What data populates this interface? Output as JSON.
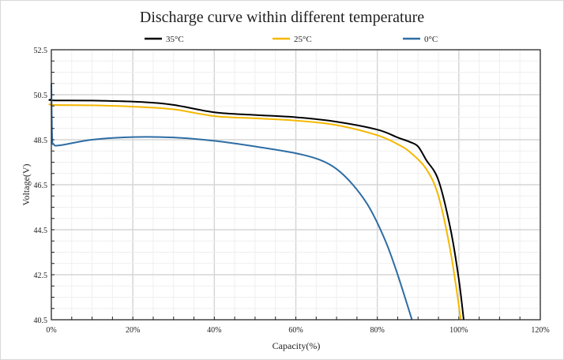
{
  "chart_data": {
    "type": "line",
    "title": "Discharge curve within different temperature",
    "xlabel": "Capacity(%)",
    "ylabel": "Voltage(V)",
    "xlim": [
      0,
      120
    ],
    "ylim": [
      40.5,
      52.5
    ],
    "x_ticks": [
      "0%",
      "20%",
      "40%",
      "60%",
      "80%",
      "100%",
      "120%"
    ],
    "y_ticks": [
      "52.5",
      "50.5",
      "48.5",
      "46.5",
      "44.5",
      "42.5",
      "40.5"
    ],
    "grid": true,
    "legend_position": "top",
    "series": [
      {
        "name": "35°C",
        "color": "#000000",
        "x": [
          0,
          0.3,
          10,
          22,
          30,
          40,
          50,
          60,
          70,
          80,
          85,
          88,
          90,
          92,
          95,
          98,
          100,
          101.2
        ],
        "y": [
          50.3,
          50.25,
          50.24,
          50.18,
          50.05,
          49.72,
          49.6,
          49.5,
          49.3,
          48.95,
          48.6,
          48.4,
          48.2,
          47.6,
          46.7,
          44.5,
          42.3,
          40.5
        ]
      },
      {
        "name": "25°C",
        "color": "#f5b800",
        "x": [
          0,
          0.3,
          10,
          20,
          30,
          40,
          50,
          60,
          70,
          80,
          85,
          88,
          92,
          95,
          98,
          100.5
        ],
        "y": [
          50.1,
          50.05,
          50.03,
          49.97,
          49.85,
          49.55,
          49.45,
          49.35,
          49.15,
          48.7,
          48.3,
          47.95,
          47.2,
          46.0,
          43.5,
          40.5
        ]
      },
      {
        "name": "0°C",
        "color": "#2e6da4",
        "x": [
          0,
          0.2,
          0.6,
          2,
          10,
          20,
          30,
          40,
          50,
          60,
          66,
          70,
          74,
          78,
          82,
          85,
          88.5
        ],
        "y": [
          51.0,
          48.6,
          48.3,
          48.25,
          48.5,
          48.62,
          48.6,
          48.45,
          48.2,
          47.9,
          47.6,
          47.2,
          46.5,
          45.5,
          44.0,
          42.5,
          40.5
        ]
      }
    ]
  }
}
